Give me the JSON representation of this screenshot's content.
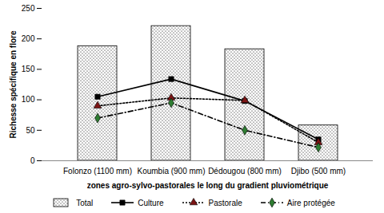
{
  "chart_data": {
    "type": "bar",
    "x_label": "zones agro-sylvo-pastorales le long du gradient pluviométrique",
    "y_label": "Richesse spécifique en flore",
    "categories": [
      "Folonzo (1100 mm)",
      "Koumbia (900 mm)",
      "Dédougou (800 mm)",
      "Djibo (500 mm)"
    ],
    "series": [
      {
        "name": "Total",
        "type": "bar",
        "color": "#000000",
        "values": [
          188,
          221,
          183,
          58
        ]
      },
      {
        "name": "Culture",
        "type": "line",
        "color": "#000000",
        "marker": "square",
        "line_style": "solid",
        "values": [
          105,
          134,
          98,
          35
        ]
      },
      {
        "name": "Pastorale",
        "type": "line",
        "color": "#7b1414",
        "marker": "triangle",
        "line_style": "dotted",
        "values": [
          90,
          103,
          99,
          30
        ]
      },
      {
        "name": "Aire protégée",
        "type": "line",
        "color": "#2e7d32",
        "marker": "diamond",
        "line_style": "dashdot",
        "values": [
          70,
          95,
          50,
          22
        ]
      }
    ],
    "ylim": [
      0,
      250
    ],
    "yticks": [
      0,
      50,
      100,
      150,
      200,
      250
    ],
    "grid": false,
    "legend": "bottom"
  }
}
